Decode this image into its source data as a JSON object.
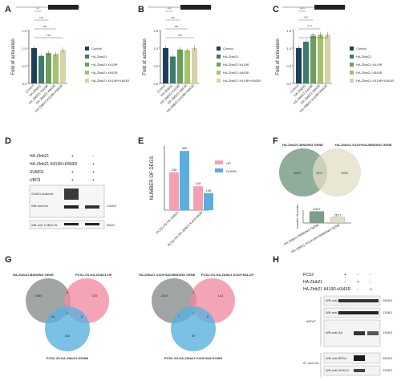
{
  "panel_labels": [
    "A",
    "B",
    "C",
    "D",
    "E",
    "F",
    "G",
    "H"
  ],
  "colors": {
    "control": "#1e3f5a",
    "s2": "#3a7d6e",
    "s3": "#6a9e5c",
    "s4": "#a4c26a",
    "s5": "#d6d3a8",
    "pink": "#f4a0b0",
    "blue": "#5aaee0",
    "venn_gray": "#8a8f8c",
    "venn_green": "#7d9d8a",
    "venn_cream": "#e2ddc6",
    "venn_pink": "#ef8aa0",
    "venn_blue": "#5ab2de"
  },
  "luciferase_charts": [
    {
      "ylabel": "Fold of activation",
      "ylim": [
        0,
        1.5
      ],
      "yticks": [
        "0.0",
        "0.5",
        "1.0",
        "1.5"
      ],
      "categories": [
        "Control",
        "HA-Zbtb21",
        "HA-Zbtb21 K419R",
        "HA-Zbtb21 K843R",
        "HA-Zbtb21 K419R+K843R"
      ],
      "values": [
        1.0,
        0.78,
        0.86,
        0.83,
        0.95
      ],
      "legend": [
        "Control",
        "HA-Zbtb21",
        "HA-Zbtb21 K419R",
        "HA-Zbtb21 K843R",
        "HA-Zbtb21 K419R+K843R"
      ],
      "sig": [
        "**",
        "ns",
        "ns",
        "ns"
      ]
    },
    {
      "ylabel": "Fold of activation",
      "ylim": [
        0,
        1.5
      ],
      "yticks": [
        "0.0",
        "0.5",
        "1.0",
        "1.5"
      ],
      "categories": [
        "Control",
        "HA-Zbtb21",
        "HA-Zbtb21 K419R",
        "HA-Zbtb21 K843R",
        "HA-Zbtb21 K419R+K843R"
      ],
      "values": [
        1.0,
        0.76,
        0.96,
        0.94,
        1.0
      ],
      "legend": [
        "Control",
        "HA-Zbtb21",
        "HA-Zbtb21 K419R",
        "HA-Zbtb21 K843R",
        "HA-Zbtb21 K419R+K843R"
      ],
      "sig": [
        "***",
        "ns",
        "ns",
        "ns"
      ]
    },
    {
      "ylabel": "Fold of activation",
      "ylim": [
        0,
        1.5
      ],
      "yticks": [
        "0.0",
        "0.5",
        "1.0",
        "1.5"
      ],
      "categories": [
        "Control",
        "HA-Zbtb21",
        "HA-Zbtb21 K419R",
        "HA-Zbtb21 K843R",
        "HA-Zbtb21 K419R+K843R"
      ],
      "values": [
        1.0,
        1.18,
        1.35,
        1.38,
        1.38
      ],
      "legend": [
        "Control",
        "HA-Zbtb21",
        "HA-Zbtb21 K419R",
        "HA-Zbtb21 K843R",
        "HA-Zbtb21 K419R+K843R"
      ],
      "sig": [
        "****",
        "****",
        "****",
        "****"
      ]
    }
  ],
  "panel_d": {
    "rows": [
      {
        "label": "HA-Zbtb21",
        "marks": [
          "+",
          "-"
        ]
      },
      {
        "label": "HA-Zbtb21 K419R+K843R",
        "marks": [
          "-",
          "+"
        ]
      },
      {
        "label": "SUMO1",
        "marks": [
          "+",
          "+"
        ]
      },
      {
        "label": "UBC9",
        "marks": [
          "+",
          "+"
        ]
      }
    ],
    "blot_labels": [
      "SUMO-adducts",
      "WB anti-HA",
      "WB anti-TUBULIN"
    ],
    "markers": [
      "130KD",
      "55KD"
    ]
  },
  "chart_data": {
    "type": "bar",
    "ylabel": "NUMBER OF DEGS",
    "categories": [
      "PCS2-VS-HA-Zbtb21",
      "PCS2-VS-HA-Zbtb21 K419+843R"
    ],
    "series": [
      {
        "name": "UP",
        "values": [
          236,
          149
        ]
      },
      {
        "name": "DOWN",
        "values": [
          369,
          106
        ]
      }
    ],
    "labels": [
      "236",
      "369",
      "149",
      "106"
    ]
  },
  "panel_f": {
    "title_left": "HA-Zbtb21-BINDING GENE",
    "title_right": "HA-Zbtb21 K419+843-BINDING GENE",
    "left_only": "3830",
    "overlap": "1577",
    "right_only": "1094",
    "bar_ylabel": "number of peaks",
    "bars": [
      {
        "label": "HA-Zbtb21-BINDING GENE",
        "value": 5407
      },
      {
        "label": "HA-Zbtb21 K419+843-BINDING GENE",
        "value": 2671
      }
    ],
    "bar_values": [
      "5407",
      "2671"
    ]
  },
  "panel_g": [
    {
      "set_a": "HA-Zbtb21-BINDING GENE",
      "set_b": "PCS2-VS-HA-Zbtb21-UP",
      "set_c": "PCS2-VS-HA-Zbtb21-DOWN",
      "nums": [
        "5389",
        "8",
        "229",
        "16",
        "8",
        "8",
        "333"
      ]
    },
    {
      "set_a": "HA-Zbtb21 K419+843-BINDING GENE",
      "set_b": "PCS2-VS-HA-Zbtb21 K419+843-UP",
      "set_c": "PCS2-VS-HA-Zbtb21 K419+843-DOWN",
      "nums": [
        "2619",
        "2",
        "142",
        "7",
        "4",
        "8",
        "89"
      ]
    }
  ],
  "panel_h": {
    "rows": [
      {
        "label": "PCS2",
        "marks": [
          "+",
          "-",
          "-"
        ]
      },
      {
        "label": "HA-Zbtb21",
        "marks": [
          "-",
          "+",
          "-"
        ]
      },
      {
        "label": "HA-Zbtb21 K419R+K843R",
        "marks": [
          "-",
          "-",
          "+"
        ]
      }
    ],
    "input_label": "INPUT",
    "ip_label": "IP: anti-HA",
    "blots": [
      "WB anti-BRD4",
      "WB anti-HDAC4",
      "WB anti-HA",
      "WB anti-BRD4",
      "WB anti-HDAC4"
    ],
    "markers": [
      "250KD",
      "130KD",
      "130KD",
      "250KD",
      "130KD"
    ]
  }
}
